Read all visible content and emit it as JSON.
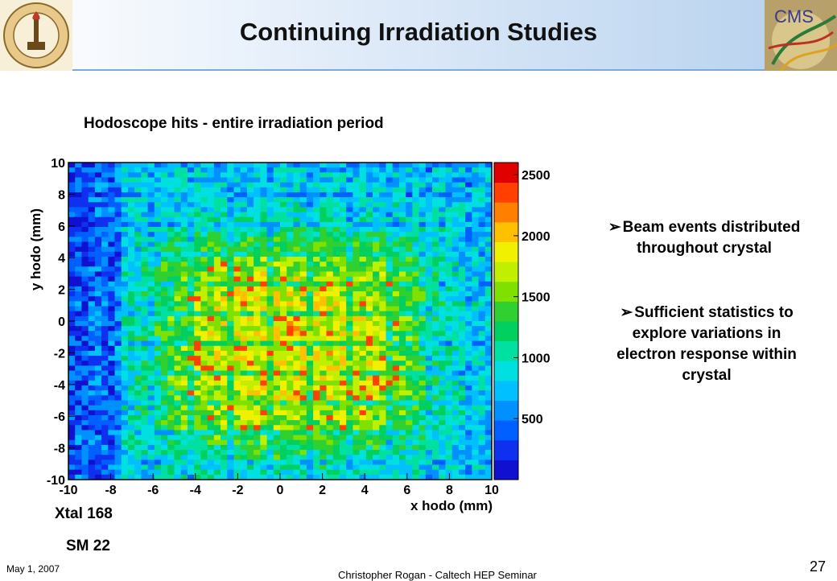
{
  "slide": {
    "title": "Continuing Irradiation Studies",
    "date": "May 1, 2007",
    "footer": "Christopher Rogan - Caltech HEP Seminar",
    "page_number": "27"
  },
  "logos": {
    "left_lettering": "CALIFORNIA INSTITUTE OF TECHNOLOGY 1891",
    "right_lettering": "CMS"
  },
  "figure": {
    "subtitle": "Hodoscope hits - entire irradiation period",
    "label_xtal": "Xtal 168",
    "label_sm": "SM 22"
  },
  "bullets": [
    {
      "line1": "Beam events distributed",
      "line2": "throughout crystal"
    },
    {
      "line1": "Sufficient statistics to",
      "line2": "explore variations in",
      "line3": "electron response within",
      "line4": "crystal"
    }
  ],
  "chart_data": {
    "type": "heatmap",
    "xlabel": "x hodo (mm)",
    "ylabel": "y hodo (mm)",
    "xlim": [
      -10,
      10
    ],
    "ylim": [
      -10,
      10
    ],
    "x_ticks": [
      "-10",
      "-8",
      "-6",
      "-4",
      "-2",
      "0",
      "2",
      "4",
      "6",
      "8",
      "10"
    ],
    "y_ticks": [
      "10",
      "8",
      "6",
      "4",
      "2",
      "0",
      "-2",
      "-4",
      "-6",
      "-8",
      "-10"
    ],
    "color_scale": {
      "min": 0,
      "max": 2600,
      "ticks": [
        "2500",
        "2000",
        "1500",
        "1000",
        "500"
      ]
    },
    "bins": {
      "nx": 64,
      "ny": 64
    },
    "typical_counts": {
      "edge_left": 300,
      "edge_band": 800,
      "center": 1800,
      "peak": 2300
    },
    "colors": [
      "#1010d0",
      "#1030f0",
      "#0060ff",
      "#0090ff",
      "#00c0ff",
      "#00e0e0",
      "#00e0a0",
      "#00d060",
      "#30d030",
      "#80e000",
      "#c0f000",
      "#f0f000",
      "#ffc000",
      "#ff8000",
      "#ff4000",
      "#e00000"
    ]
  }
}
